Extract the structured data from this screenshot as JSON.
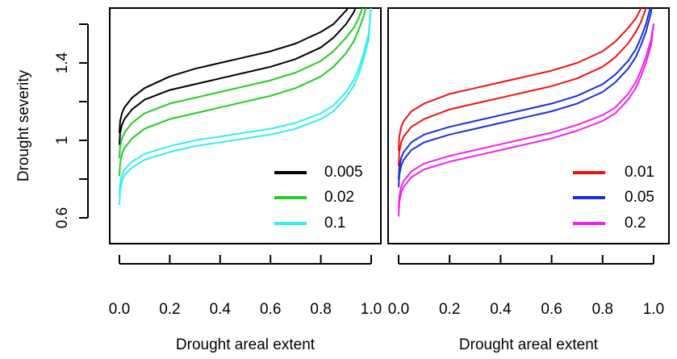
{
  "chart_data": {
    "type": "line",
    "ylabel": "Drought severity",
    "yticks": [
      0.6,
      1.0,
      1.4
    ],
    "ylim": [
      0.55,
      1.66
    ],
    "panels": [
      {
        "xlabel": "Drought areal extent",
        "xticks": [
          0.0,
          0.2,
          0.4,
          0.6,
          0.8,
          1.0
        ],
        "xtick_labels": [
          "0.0",
          "0.2",
          "0.4",
          "0.6",
          "0.8",
          "1.0"
        ],
        "xlim": [
          0,
          1
        ],
        "legend_position": "bottom-right",
        "series": [
          {
            "name": "0.005",
            "color": "#000000",
            "bands": [
              {
                "x": [
                  0,
                  0.003,
                  0.01,
                  0.02,
                  0.05,
                  0.1,
                  0.2,
                  0.3,
                  0.4,
                  0.5,
                  0.6,
                  0.7,
                  0.8,
                  0.85,
                  0.9,
                  0.93,
                  0.95,
                  0.97,
                  0.99,
                  1.0
                ],
                "y": [
                  1.04,
                  1.1,
                  1.14,
                  1.17,
                  1.22,
                  1.27,
                  1.33,
                  1.37,
                  1.4,
                  1.43,
                  1.46,
                  1.5,
                  1.56,
                  1.6,
                  1.67,
                  1.72,
                  1.78,
                  1.85,
                  1.95,
                  2.0
                ]
              },
              {
                "x": [
                  0,
                  0.003,
                  0.01,
                  0.02,
                  0.05,
                  0.1,
                  0.2,
                  0.3,
                  0.4,
                  0.5,
                  0.6,
                  0.7,
                  0.8,
                  0.85,
                  0.9,
                  0.93,
                  0.95,
                  0.97,
                  0.99,
                  1.0
                ],
                "y": [
                  0.98,
                  1.04,
                  1.08,
                  1.11,
                  1.16,
                  1.21,
                  1.26,
                  1.29,
                  1.32,
                  1.35,
                  1.38,
                  1.42,
                  1.48,
                  1.53,
                  1.6,
                  1.66,
                  1.72,
                  1.8,
                  1.9,
                  2.0
                ]
              }
            ]
          },
          {
            "name": "0.02",
            "color": "#22cc22",
            "bands": [
              {
                "x": [
                  0,
                  0.003,
                  0.01,
                  0.02,
                  0.05,
                  0.1,
                  0.2,
                  0.3,
                  0.4,
                  0.5,
                  0.6,
                  0.7,
                  0.8,
                  0.85,
                  0.9,
                  0.93,
                  0.95,
                  0.97,
                  0.99,
                  1.0
                ],
                "y": [
                  0.91,
                  0.97,
                  1.01,
                  1.04,
                  1.09,
                  1.14,
                  1.19,
                  1.22,
                  1.25,
                  1.28,
                  1.31,
                  1.35,
                  1.41,
                  1.46,
                  1.53,
                  1.58,
                  1.63,
                  1.7,
                  1.8,
                  1.9
                ]
              },
              {
                "x": [
                  0,
                  0.003,
                  0.01,
                  0.02,
                  0.05,
                  0.1,
                  0.2,
                  0.3,
                  0.4,
                  0.5,
                  0.6,
                  0.7,
                  0.8,
                  0.85,
                  0.9,
                  0.93,
                  0.95,
                  0.97,
                  0.99,
                  1.0
                ],
                "y": [
                  0.82,
                  0.88,
                  0.93,
                  0.96,
                  1.01,
                  1.06,
                  1.11,
                  1.14,
                  1.17,
                  1.2,
                  1.23,
                  1.27,
                  1.33,
                  1.38,
                  1.45,
                  1.51,
                  1.57,
                  1.64,
                  1.74,
                  1.85
                ]
              }
            ]
          },
          {
            "name": "0.1",
            "color": "#33eeee",
            "bands": [
              {
                "x": [
                  0,
                  0.003,
                  0.01,
                  0.02,
                  0.05,
                  0.1,
                  0.2,
                  0.3,
                  0.4,
                  0.5,
                  0.6,
                  0.7,
                  0.8,
                  0.85,
                  0.9,
                  0.93,
                  0.95,
                  0.97,
                  0.99,
                  1.0
                ],
                "y": [
                  0.72,
                  0.78,
                  0.82,
                  0.85,
                  0.89,
                  0.93,
                  0.97,
                  1.0,
                  1.02,
                  1.04,
                  1.06,
                  1.09,
                  1.14,
                  1.18,
                  1.25,
                  1.31,
                  1.37,
                  1.45,
                  1.55,
                  1.7
                ]
              },
              {
                "x": [
                  0,
                  0.003,
                  0.01,
                  0.02,
                  0.05,
                  0.1,
                  0.2,
                  0.3,
                  0.4,
                  0.5,
                  0.6,
                  0.7,
                  0.8,
                  0.85,
                  0.9,
                  0.93,
                  0.95,
                  0.97,
                  0.99,
                  1.0
                ],
                "y": [
                  0.67,
                  0.74,
                  0.79,
                  0.82,
                  0.86,
                  0.9,
                  0.94,
                  0.97,
                  0.99,
                  1.01,
                  1.03,
                  1.06,
                  1.11,
                  1.15,
                  1.22,
                  1.28,
                  1.34,
                  1.42,
                  1.52,
                  1.7
                ]
              }
            ]
          }
        ]
      },
      {
        "xlabel": "Drought areal extent",
        "xticks": [
          0.0,
          0.2,
          0.4,
          0.6,
          0.8,
          1.0
        ],
        "xtick_labels": [
          "0.0",
          "0.2",
          "0.4",
          "0.6",
          "0.8",
          "1.0"
        ],
        "xlim": [
          0,
          1
        ],
        "legend_position": "bottom-right",
        "series": [
          {
            "name": "0.01",
            "color": "#ee1111",
            "bands": [
              {
                "x": [
                  0,
                  0.003,
                  0.01,
                  0.02,
                  0.05,
                  0.1,
                  0.2,
                  0.3,
                  0.4,
                  0.5,
                  0.6,
                  0.7,
                  0.8,
                  0.85,
                  0.9,
                  0.93,
                  0.95,
                  0.97,
                  0.99,
                  1.0
                ],
                "y": [
                  0.95,
                  1.02,
                  1.07,
                  1.1,
                  1.15,
                  1.19,
                  1.24,
                  1.27,
                  1.3,
                  1.33,
                  1.36,
                  1.4,
                  1.46,
                  1.51,
                  1.58,
                  1.63,
                  1.68,
                  1.75,
                  1.85,
                  1.95
                ]
              },
              {
                "x": [
                  0,
                  0.003,
                  0.01,
                  0.02,
                  0.05,
                  0.1,
                  0.2,
                  0.3,
                  0.4,
                  0.5,
                  0.6,
                  0.7,
                  0.8,
                  0.85,
                  0.9,
                  0.93,
                  0.95,
                  0.97,
                  0.99,
                  1.0
                ],
                "y": [
                  0.87,
                  0.94,
                  0.99,
                  1.02,
                  1.07,
                  1.11,
                  1.16,
                  1.19,
                  1.22,
                  1.25,
                  1.28,
                  1.32,
                  1.38,
                  1.43,
                  1.5,
                  1.56,
                  1.61,
                  1.68,
                  1.78,
                  1.9
                ]
              }
            ]
          },
          {
            "name": "0.05",
            "color": "#1a2ee0",
            "bands": [
              {
                "x": [
                  0,
                  0.003,
                  0.01,
                  0.02,
                  0.05,
                  0.1,
                  0.2,
                  0.3,
                  0.4,
                  0.5,
                  0.6,
                  0.7,
                  0.8,
                  0.85,
                  0.9,
                  0.93,
                  0.95,
                  0.97,
                  0.99,
                  1.0
                ],
                "y": [
                  0.8,
                  0.86,
                  0.91,
                  0.94,
                  0.99,
                  1.03,
                  1.07,
                  1.1,
                  1.13,
                  1.16,
                  1.19,
                  1.23,
                  1.29,
                  1.34,
                  1.41,
                  1.47,
                  1.53,
                  1.6,
                  1.7,
                  1.8
                ]
              },
              {
                "x": [
                  0,
                  0.003,
                  0.01,
                  0.02,
                  0.05,
                  0.1,
                  0.2,
                  0.3,
                  0.4,
                  0.5,
                  0.6,
                  0.7,
                  0.8,
                  0.85,
                  0.9,
                  0.93,
                  0.95,
                  0.97,
                  0.99,
                  1.0
                ],
                "y": [
                  0.76,
                  0.82,
                  0.87,
                  0.9,
                  0.95,
                  0.99,
                  1.03,
                  1.06,
                  1.09,
                  1.12,
                  1.15,
                  1.19,
                  1.25,
                  1.3,
                  1.37,
                  1.43,
                  1.49,
                  1.56,
                  1.66,
                  1.76
                ]
              }
            ]
          },
          {
            "name": "0.2",
            "color": "#ee22ee",
            "bands": [
              {
                "x": [
                  0,
                  0.003,
                  0.01,
                  0.02,
                  0.05,
                  0.1,
                  0.2,
                  0.3,
                  0.4,
                  0.5,
                  0.6,
                  0.7,
                  0.8,
                  0.85,
                  0.9,
                  0.93,
                  0.95,
                  0.97,
                  0.99,
                  1.0
                ],
                "y": [
                  0.65,
                  0.71,
                  0.76,
                  0.79,
                  0.84,
                  0.88,
                  0.92,
                  0.95,
                  0.98,
                  1.01,
                  1.04,
                  1.08,
                  1.13,
                  1.17,
                  1.24,
                  1.3,
                  1.36,
                  1.43,
                  1.52,
                  1.6
                ]
              },
              {
                "x": [
                  0,
                  0.003,
                  0.01,
                  0.02,
                  0.05,
                  0.1,
                  0.2,
                  0.3,
                  0.4,
                  0.5,
                  0.6,
                  0.7,
                  0.8,
                  0.85,
                  0.9,
                  0.93,
                  0.95,
                  0.97,
                  0.99,
                  1.0
                ],
                "y": [
                  0.61,
                  0.68,
                  0.73,
                  0.76,
                  0.81,
                  0.85,
                  0.89,
                  0.92,
                  0.95,
                  0.98,
                  1.01,
                  1.05,
                  1.1,
                  1.14,
                  1.21,
                  1.27,
                  1.33,
                  1.4,
                  1.49,
                  1.6
                ]
              }
            ]
          }
        ]
      }
    ]
  }
}
